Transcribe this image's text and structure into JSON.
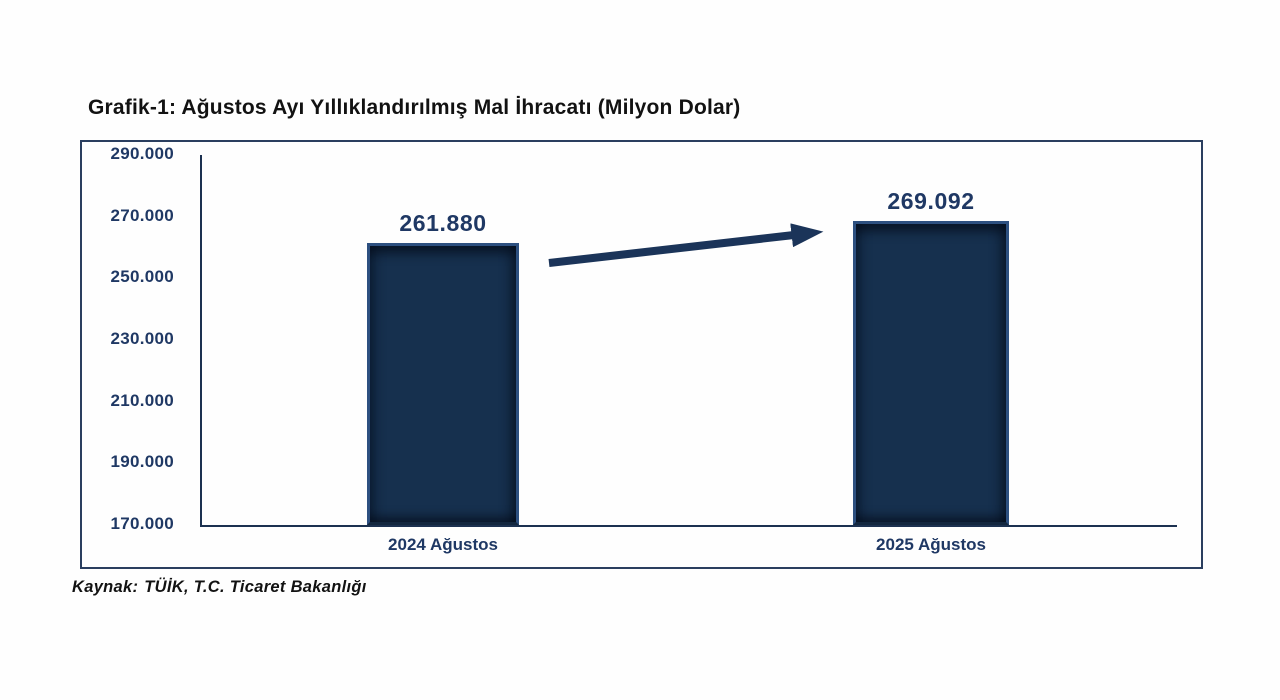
{
  "page": {
    "title": "Grafik-1: Ağustos Ayı Yıllıklandırılmış Mal İhracatı (Milyon Dolar)"
  },
  "source": {
    "prefix": "Kaynak:",
    "text": "TÜİK, T.C. Ticaret Bakanlığı"
  },
  "colors": {
    "navy_text": "#1F3864",
    "bar_fill": "#16304E",
    "bar_bevel_light": "#2D5080",
    "axis_line": "#1C3150",
    "frame_border": "#2A3E5F",
    "arrow": "#1B3459",
    "title_text": "#121212"
  },
  "chart_data": {
    "type": "bar",
    "title": "Grafik-1: Ağustos Ayı Yıllıklandırılmış Mal İhracatı (Milyon Dolar)",
    "categories": [
      "2024 Ağustos",
      "2025 Ağustos"
    ],
    "values": [
      261880,
      269092
    ],
    "value_labels": [
      "261.880",
      "269.092"
    ],
    "ylim": [
      170000,
      290000
    ],
    "ytick_step": 20000,
    "ytick_labels": [
      "290.000",
      "270.000",
      "250.000",
      "230.000",
      "210.000",
      "190.000",
      "170.000"
    ],
    "xlabel": "",
    "ylabel": "",
    "grid": false,
    "legend": false,
    "annotations": [
      "thick navy arrow from 2024 bar to 2025 bar indicating increase"
    ],
    "source": "Kaynak: TÜİK, T.C. Ticaret Bakanlığı"
  }
}
